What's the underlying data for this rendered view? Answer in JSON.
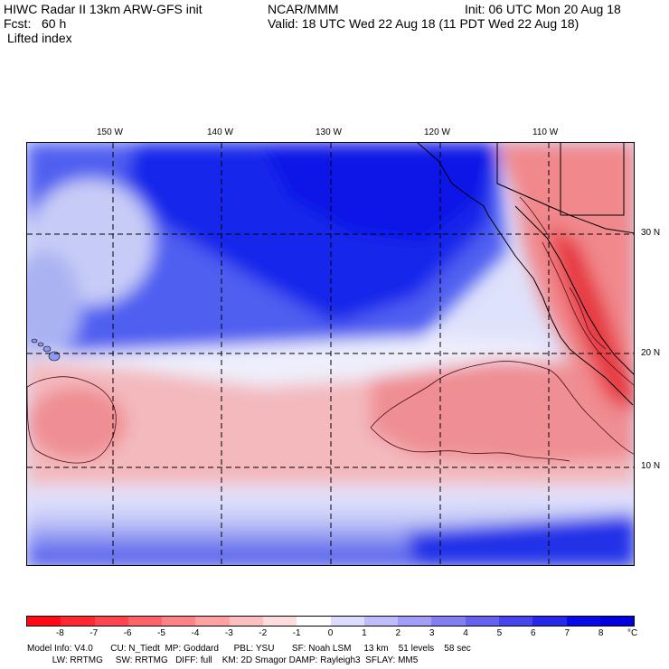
{
  "header": {
    "model_title": "HIWC Radar II 13km ARW-GFS init",
    "org": "NCAR/MMM",
    "init": "Init: 06 UTC Mon 20 Aug 18",
    "forecast": "Fcst:   60 h",
    "valid": "Valid: 18 UTC Wed 22 Aug 18 (11 PDT Wed 22 Aug 18)",
    "field": "Lifted index"
  },
  "map": {
    "lon_ticks": [
      "150 W",
      "140 W",
      "130 W",
      "120 W",
      "110 W"
    ],
    "lat_ticks": [
      "30 N",
      "20 N",
      "10 N"
    ],
    "grid_style": "dashed",
    "colors": {
      "strong_stable": "#0a14e6",
      "stable": "#5a6cf0",
      "weak_stable": "#c8cdf7",
      "neutral": "#ffffff",
      "weak_unstable": "#f7c8cc",
      "unstable": "#f0787a",
      "strong_unstable": "#e6141e"
    }
  },
  "colorbar": {
    "labels": [
      "-8",
      "-7",
      "-6",
      "-5",
      "-4",
      "-3",
      "-2",
      "-1",
      "0",
      "1",
      "2",
      "3",
      "4",
      "5",
      "6",
      "7",
      "8"
    ],
    "unit": "°C",
    "colors": [
      "#ff0a14",
      "#ff2830",
      "#ff4650",
      "#ff6469",
      "#ff8287",
      "#ffa0a3",
      "#ffbec0",
      "#ffdcdd",
      "#ffffff",
      "#dcdcff",
      "#bebcfb",
      "#a09ef7",
      "#827ff3",
      "#6462ef",
      "#4644eb",
      "#2828e8",
      "#0a0ae6",
      "#0000dc"
    ]
  },
  "footer": {
    "line1": "Model Info: V4.0       CU: N_Tiedt  MP: Goddard      PBL: YSU       SF: Noah LSM     13 km    51 levels    58 sec",
    "line2": "          LW: RRTMG     SW: RRTMG   DIFF: full    KM: 2D Smagor DAMP: Rayleigh3  SFLAY: MM5"
  }
}
